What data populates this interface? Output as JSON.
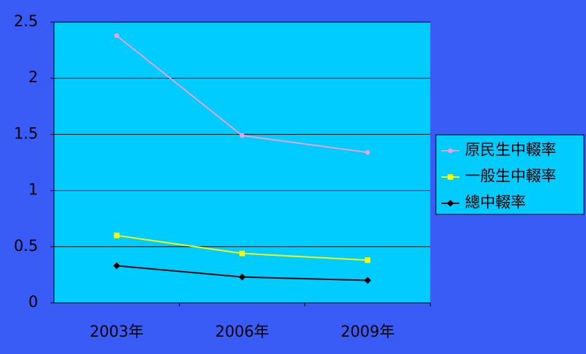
{
  "chart_data": {
    "type": "line",
    "categories": [
      "2003年",
      "2006年",
      "2009年"
    ],
    "series": [
      {
        "name": "原民生中輟率",
        "color": "#f0a0e0",
        "marker": "circle",
        "values": [
          2.38,
          1.49,
          1.34
        ]
      },
      {
        "name": "一般生中輟率",
        "color": "#ffff00",
        "marker": "square",
        "values": [
          0.6,
          0.44,
          0.38
        ]
      },
      {
        "name": "總中輟率",
        "color": "#000000",
        "marker": "diamond",
        "values": [
          0.33,
          0.23,
          0.2
        ]
      }
    ],
    "ylim": [
      0,
      2.5
    ],
    "yticks": [
      0,
      0.5,
      1,
      1.5,
      2,
      2.5
    ],
    "grid": true,
    "legend": "right"
  }
}
